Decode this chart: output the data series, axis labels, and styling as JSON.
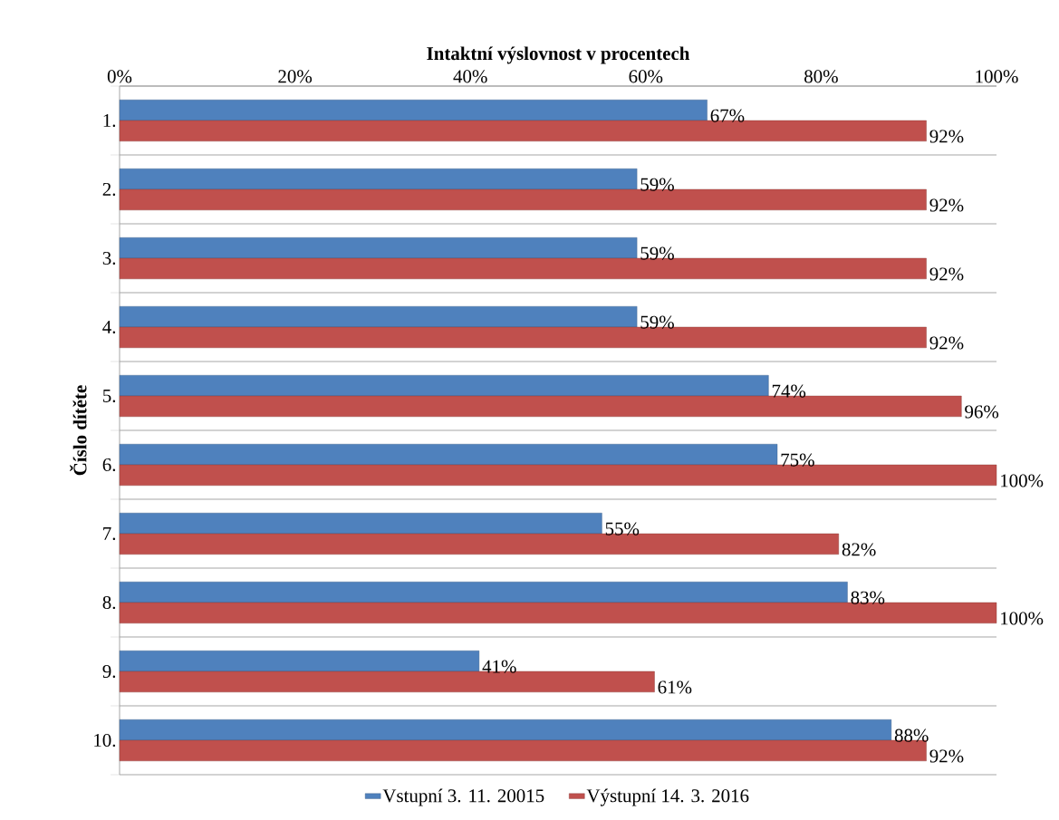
{
  "chart_data": {
    "type": "bar",
    "orientation": "horizontal",
    "xlabel": "Intaktní výslovnost v procentech",
    "ylabel": "Číslo dítěte",
    "categories": [
      "1.",
      "2.",
      "3.",
      "4.",
      "5.",
      "6.",
      "7.",
      "8.",
      "9.",
      "10."
    ],
    "series": [
      {
        "name": "Vstupní 3. 11. 20015",
        "color": "#4f81bd",
        "values": [
          67,
          59,
          59,
          59,
          74,
          75,
          55,
          83,
          41,
          88
        ],
        "value_labels": [
          "67%",
          "59%",
          "59%",
          "59%",
          "74%",
          "75%",
          "55%",
          "83%",
          "41%",
          "88%"
        ]
      },
      {
        "name": "Výstupní 14. 3. 2016",
        "color": "#c0504d",
        "values": [
          92,
          92,
          92,
          92,
          96,
          100,
          82,
          100,
          61,
          92
        ],
        "value_labels": [
          "92%",
          "92%",
          "92%",
          "92%",
          "96%",
          "100%",
          "82%",
          "100%",
          "61%",
          "92%"
        ]
      }
    ],
    "xlim": [
      0,
      100
    ],
    "xticks": [
      {
        "value": 0,
        "label": "0%"
      },
      {
        "value": 20,
        "label": "20%"
      },
      {
        "value": 40,
        "label": "40%"
      },
      {
        "value": 60,
        "label": "60%"
      },
      {
        "value": 80,
        "label": "80%"
      },
      {
        "value": 100,
        "label": "100%"
      }
    ],
    "grid": "y",
    "legend": "bottom"
  }
}
